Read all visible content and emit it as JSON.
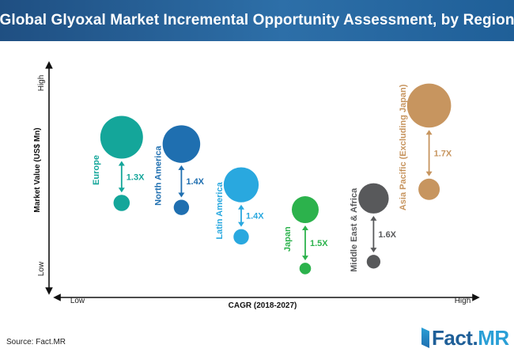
{
  "header": {
    "title": "Global Glyoxal Market Incremental Opportunity Assessment, by Region"
  },
  "source": "Source: Fact.MR",
  "logo": {
    "prefix": "Fact.",
    "suffix": "MR"
  },
  "chart_data": {
    "type": "bubble",
    "title": "Global Glyoxal Market Incremental Opportunity Assessment, by Region",
    "xlabel": "CAGR (2018-2027)",
    "ylabel": "Market Value (US$ Mn)",
    "x_ticks": [
      "Low",
      "High"
    ],
    "y_ticks": [
      "Low",
      "High"
    ],
    "series": [
      {
        "name": "Europe",
        "color": "#14a69a",
        "multiplier": "1.3X",
        "x": 0.17,
        "y_start": 0.39,
        "y_end": 0.68,
        "size_start": 0.38,
        "size_end": 1.0
      },
      {
        "name": "North America",
        "color": "#1f6fb0",
        "multiplier": "1.4X",
        "x": 0.31,
        "y_start": 0.37,
        "y_end": 0.65,
        "size_start": 0.36,
        "size_end": 0.88
      },
      {
        "name": "Latin America",
        "color": "#29a8df",
        "multiplier": "1.4X",
        "x": 0.45,
        "y_start": 0.24,
        "y_end": 0.47,
        "size_start": 0.36,
        "size_end": 0.82
      },
      {
        "name": "Japan",
        "color": "#2cb24c",
        "multiplier": "1.5X",
        "x": 0.6,
        "y_start": 0.1,
        "y_end": 0.36,
        "size_start": 0.27,
        "size_end": 0.63
      },
      {
        "name": "Middle East & Africa",
        "color": "#58595b",
        "multiplier": "1.6X",
        "x": 0.76,
        "y_start": 0.13,
        "y_end": 0.41,
        "size_start": 0.32,
        "size_end": 0.71
      },
      {
        "name": "Asia Pacific (Excluding Japan)",
        "color": "#c7955f",
        "multiplier": "1.7X",
        "x": 0.89,
        "y_start": 0.45,
        "y_end": 0.82,
        "size_start": 0.5,
        "size_end": 1.03
      }
    ]
  }
}
